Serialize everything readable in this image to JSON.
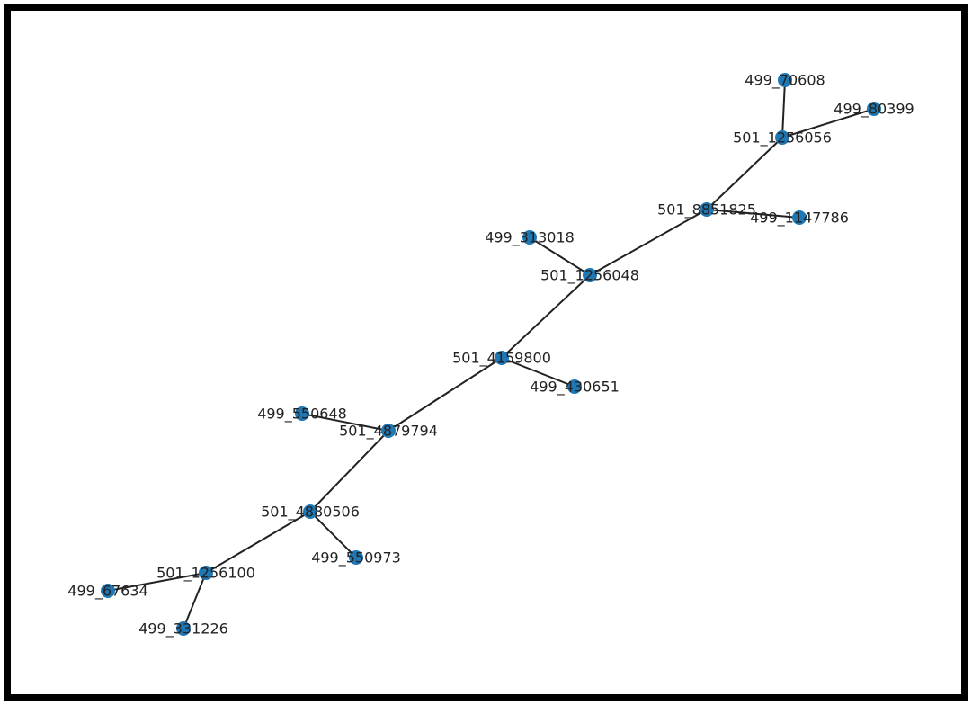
{
  "graph": {
    "node_color": "#1f77b4",
    "edge_color": "#222222",
    "nodes": [
      {
        "id": "499_70608"
      },
      {
        "id": "499_80399"
      },
      {
        "id": "501_1256056"
      },
      {
        "id": "501_8851825"
      },
      {
        "id": "499_1147786"
      },
      {
        "id": "499_313018"
      },
      {
        "id": "501_1256048"
      },
      {
        "id": "501_4159800"
      },
      {
        "id": "499_430651"
      },
      {
        "id": "499_550648"
      },
      {
        "id": "501_4879794"
      },
      {
        "id": "501_4880506"
      },
      {
        "id": "499_550973"
      },
      {
        "id": "501_1256100"
      },
      {
        "id": "499_67634"
      },
      {
        "id": "499_331226"
      }
    ],
    "edges": [
      [
        "499_70608",
        "501_1256056"
      ],
      [
        "499_80399",
        "501_1256056"
      ],
      [
        "501_1256056",
        "501_8851825"
      ],
      [
        "501_8851825",
        "499_1147786"
      ],
      [
        "501_8851825",
        "501_1256048"
      ],
      [
        "499_313018",
        "501_1256048"
      ],
      [
        "501_1256048",
        "501_4159800"
      ],
      [
        "501_4159800",
        "499_430651"
      ],
      [
        "501_4159800",
        "501_4879794"
      ],
      [
        "499_550648",
        "501_4879794"
      ],
      [
        "501_4879794",
        "501_4880506"
      ],
      [
        "501_4880506",
        "499_550973"
      ],
      [
        "501_4880506",
        "501_1256100"
      ],
      [
        "501_1256100",
        "499_67634"
      ],
      [
        "501_1256100",
        "499_331226"
      ]
    ]
  }
}
